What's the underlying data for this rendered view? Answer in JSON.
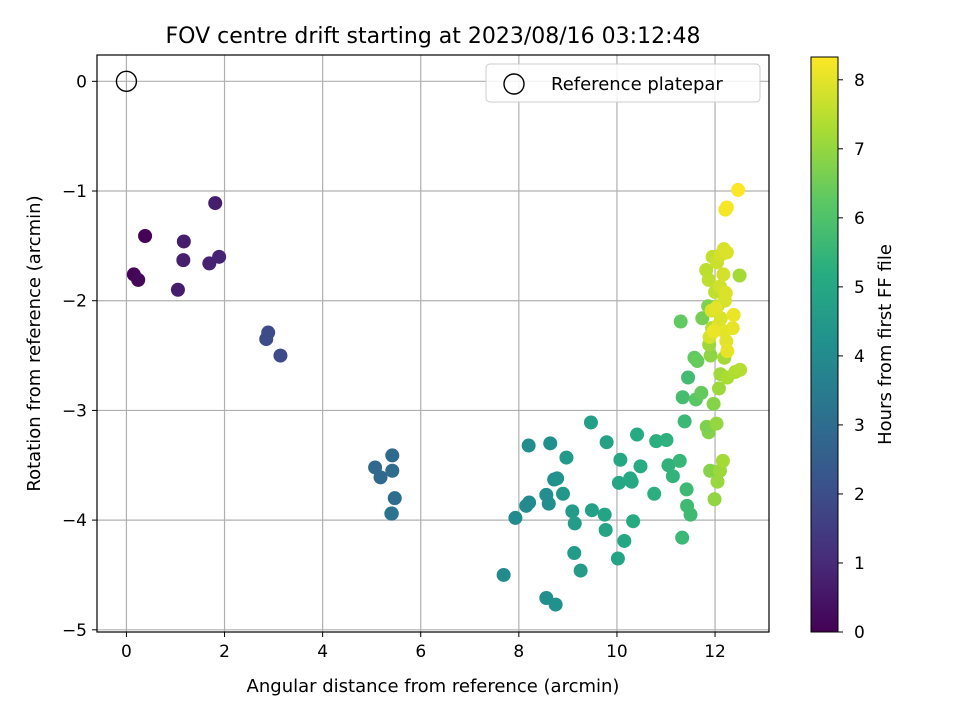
{
  "chart_data": {
    "type": "scatter",
    "title": "FOV centre drift starting at 2023/08/16 03:12:48",
    "xlabel": "Angular distance from reference (arcmin)",
    "ylabel": "Rotation from reference (arcmin)",
    "xlim": [
      -0.6,
      13.1
    ],
    "ylim": [
      -5.02,
      0.24
    ],
    "xticks": [
      0,
      2,
      4,
      6,
      8,
      10,
      12
    ],
    "yticks": [
      0,
      -1,
      -2,
      -3,
      -4,
      -5
    ],
    "grid": true,
    "legend": {
      "placement": "top-right",
      "entries": [
        "Reference platepar"
      ]
    },
    "colorbar": {
      "label": "Hours from first FF file",
      "min": 0,
      "max": 8.33,
      "ticks": [
        0,
        1,
        2,
        3,
        4,
        5,
        6,
        7,
        8
      ],
      "colormap": "viridis"
    },
    "reference": {
      "x": 0,
      "y": 0
    },
    "points": [
      [
        0.38,
        -1.41,
        0.05
      ],
      [
        0.15,
        -1.76,
        0.1
      ],
      [
        0.24,
        -1.81,
        0.15
      ],
      [
        1.81,
        -1.11,
        0.7
      ],
      [
        1.17,
        -1.46,
        0.7
      ],
      [
        1.16,
        -1.63,
        0.75
      ],
      [
        1.05,
        -1.9,
        0.65
      ],
      [
        1.69,
        -1.66,
        0.8
      ],
      [
        1.89,
        -1.6,
        0.85
      ],
      [
        2.89,
        -2.29,
        1.9
      ],
      [
        2.85,
        -2.35,
        1.9
      ],
      [
        3.14,
        -2.5,
        1.95
      ],
      [
        5.07,
        -3.52,
        2.85
      ],
      [
        5.18,
        -3.61,
        2.85
      ],
      [
        5.42,
        -3.41,
        2.9
      ],
      [
        5.42,
        -3.55,
        2.95
      ],
      [
        5.47,
        -3.8,
        3.0
      ],
      [
        5.41,
        -3.94,
        3.1
      ],
      [
        5.4,
        -3.94,
        3.2
      ],
      [
        7.69,
        -4.5,
        3.95
      ],
      [
        7.93,
        -3.98,
        3.95
      ],
      [
        8.15,
        -3.87,
        4.0
      ],
      [
        8.21,
        -3.84,
        4.0
      ],
      [
        8.2,
        -3.32,
        4.05
      ],
      [
        8.56,
        -3.77,
        4.1
      ],
      [
        8.61,
        -3.85,
        4.1
      ],
      [
        8.64,
        -3.3,
        4.15
      ],
      [
        8.72,
        -3.63,
        4.2
      ],
      [
        8.78,
        -3.62,
        4.25
      ],
      [
        8.56,
        -4.71,
        4.15
      ],
      [
        8.75,
        -4.77,
        4.2
      ],
      [
        8.9,
        -3.76,
        4.4
      ],
      [
        8.97,
        -3.43,
        4.5
      ],
      [
        9.09,
        -3.92,
        4.55
      ],
      [
        9.14,
        -4.03,
        4.6
      ],
      [
        9.13,
        -4.3,
        4.55
      ],
      [
        9.26,
        -4.46,
        4.6
      ],
      [
        9.47,
        -3.11,
        4.7
      ],
      [
        9.49,
        -3.91,
        4.75
      ],
      [
        9.79,
        -3.29,
        4.8
      ],
      [
        9.75,
        -3.95,
        4.85
      ],
      [
        9.77,
        -4.09,
        4.85
      ],
      [
        10.02,
        -4.35,
        4.9
      ],
      [
        10.04,
        -3.66,
        4.95
      ],
      [
        10.07,
        -3.45,
        5.0
      ],
      [
        10.15,
        -4.19,
        5.0
      ],
      [
        10.27,
        -3.62,
        5.05
      ],
      [
        10.3,
        -3.65,
        5.05
      ],
      [
        10.33,
        -4.01,
        5.1
      ],
      [
        10.41,
        -3.22,
        5.1
      ],
      [
        10.48,
        -3.51,
        5.15
      ],
      [
        10.76,
        -3.76,
        5.3
      ],
      [
        10.8,
        -3.28,
        5.3
      ],
      [
        11.01,
        -3.27,
        5.35
      ],
      [
        11.05,
        -3.5,
        5.4
      ],
      [
        11.14,
        -3.6,
        5.45
      ],
      [
        11.28,
        -3.46,
        5.55
      ],
      [
        11.33,
        -4.16,
        5.6
      ],
      [
        11.38,
        -3.1,
        5.6
      ],
      [
        11.42,
        -3.72,
        5.65
      ],
      [
        11.43,
        -3.87,
        5.7
      ],
      [
        11.5,
        -3.95,
        5.7
      ],
      [
        11.45,
        -2.7,
        5.75
      ],
      [
        11.34,
        -2.88,
        5.8
      ],
      [
        11.3,
        -2.19,
        6.3
      ],
      [
        11.61,
        -2.9,
        6.2
      ],
      [
        11.58,
        -2.52,
        6.3
      ],
      [
        11.64,
        -2.55,
        6.4
      ],
      [
        11.72,
        -2.84,
        6.35
      ],
      [
        11.74,
        -2.16,
        6.6
      ],
      [
        11.86,
        -2.05,
        6.7
      ],
      [
        11.87,
        -3.2,
        6.75
      ],
      [
        11.83,
        -3.15,
        6.7
      ],
      [
        11.9,
        -3.55,
        6.8
      ],
      [
        11.97,
        -2.94,
        6.8
      ],
      [
        11.91,
        -2.5,
        6.9
      ],
      [
        11.99,
        -3.81,
        6.95
      ],
      [
        12.03,
        -3.12,
        7.0
      ],
      [
        12.05,
        -3.65,
        7.05
      ],
      [
        12.1,
        -3.55,
        7.1
      ],
      [
        12.08,
        -2.8,
        7.1
      ],
      [
        12.11,
        -2.67,
        7.15
      ],
      [
        12.16,
        -3.46,
        7.2
      ],
      [
        12.19,
        -2.52,
        7.2
      ],
      [
        12.25,
        -2.7,
        7.3
      ],
      [
        12.41,
        -2.65,
        7.35
      ],
      [
        12.51,
        -2.63,
        7.4
      ],
      [
        12.5,
        -1.77,
        7.2
      ],
      [
        11.88,
        -2.4,
        7.1
      ],
      [
        11.94,
        -2.25,
        7.4
      ],
      [
        11.82,
        -1.72,
        7.5
      ],
      [
        11.87,
        -1.81,
        7.55
      ],
      [
        11.95,
        -1.6,
        7.6
      ],
      [
        12.0,
        -1.92,
        7.55
      ],
      [
        12.04,
        -1.65,
        7.7
      ],
      [
        12.05,
        -2.05,
        7.6
      ],
      [
        12.1,
        -1.87,
        7.75
      ],
      [
        12.12,
        -1.58,
        7.8
      ],
      [
        12.18,
        -1.53,
        7.85
      ],
      [
        12.24,
        -1.56,
        7.9
      ],
      [
        12.17,
        -1.76,
        7.8
      ],
      [
        12.2,
        -2.0,
        7.85
      ],
      [
        12.22,
        -1.93,
        7.9
      ],
      [
        11.93,
        -2.09,
        7.9
      ],
      [
        11.89,
        -2.33,
        7.85
      ],
      [
        12.07,
        -2.22,
        7.95
      ],
      [
        12.12,
        -2.16,
        7.9
      ],
      [
        12.19,
        -2.28,
        8.0
      ],
      [
        12.23,
        -2.37,
        8.0
      ],
      [
        12.25,
        -2.46,
        8.05
      ],
      [
        12.36,
        -2.25,
        8.05
      ],
      [
        12.38,
        -2.13,
        8.1
      ],
      [
        11.97,
        -2.28,
        8.1
      ],
      [
        12.02,
        -2.07,
        8.0
      ],
      [
        12.21,
        -1.17,
        8.2
      ],
      [
        12.24,
        -1.15,
        8.25
      ],
      [
        12.47,
        -0.99,
        8.3
      ]
    ]
  }
}
